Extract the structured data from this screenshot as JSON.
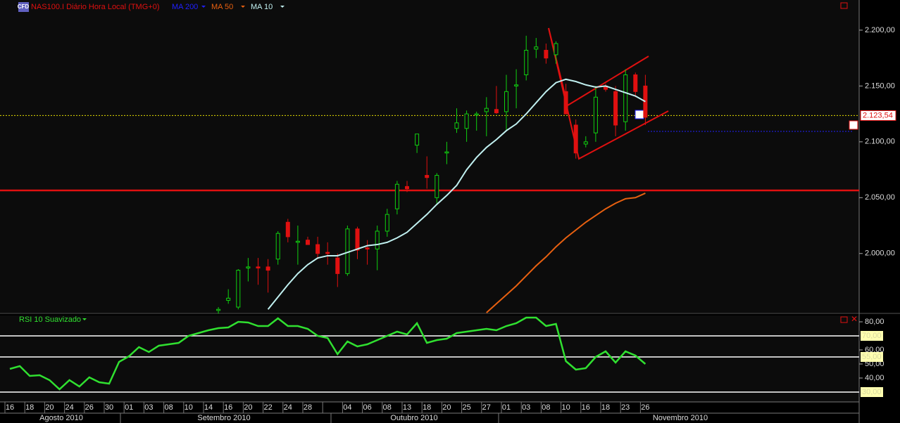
{
  "chart_data": [
    {
      "type": "candlestick",
      "title": "NAS100.I Diário Hora Local (TMG+0)",
      "title_color": "#e01010",
      "categories": [
        "16",
        null,
        "18",
        null,
        "20",
        null,
        "24",
        null,
        "26",
        null,
        "30",
        null,
        "01",
        null,
        "03",
        null,
        "08",
        null,
        "10",
        null,
        "14",
        null,
        "16",
        null,
        "20",
        null,
        "22",
        null,
        "24",
        null,
        "28",
        null,
        null,
        null,
        "04",
        null,
        "06",
        null,
        "08",
        null,
        "13",
        null,
        "18",
        null,
        "20",
        null,
        "25",
        null,
        "27",
        null,
        "01",
        null,
        "03",
        null,
        "08",
        null,
        "10",
        null,
        "16",
        null,
        "18",
        null,
        "23",
        null,
        "26"
      ],
      "open": [
        null,
        null,
        null,
        null,
        null,
        null,
        null,
        null,
        null,
        null,
        null,
        null,
        null,
        null,
        null,
        null,
        null,
        null,
        null,
        null,
        null,
        1949,
        1958,
        1952,
        1987,
        1988,
        1988,
        1995,
        2028,
        2010,
        2012,
        2008,
        2001,
        1996,
        1982,
        2022,
        2005,
        2004,
        2020,
        2040,
        2060,
        2097,
        2070,
        2050,
        2090,
        2112,
        2112,
        2124,
        2127,
        2129,
        2127,
        2150,
        2160,
        2183,
        2182,
        2178,
        2145,
        2115,
        2098,
        2108,
        2150,
        2145,
        2118,
        2160,
        2150
      ],
      "high": [
        null,
        null,
        null,
        null,
        null,
        null,
        null,
        null,
        null,
        null,
        null,
        null,
        null,
        null,
        null,
        null,
        null,
        null,
        null,
        null,
        null,
        1952,
        1968,
        1986,
        1996,
        1996,
        1995,
        2020,
        2031,
        2025,
        2015,
        2015,
        2010,
        2000,
        2025,
        2024,
        2012,
        2025,
        2040,
        2065,
        2065,
        2107,
        2087,
        2072,
        2100,
        2130,
        2128,
        2127,
        2140,
        2150,
        2160,
        2165,
        2195,
        2193,
        2188,
        2190,
        2152,
        2120,
        2105,
        2150,
        2152,
        2150,
        2165,
        2162,
        2160
      ],
      "low": [
        null,
        null,
        null,
        null,
        null,
        null,
        null,
        null,
        null,
        null,
        null,
        null,
        null,
        null,
        null,
        null,
        null,
        null,
        null,
        null,
        null,
        1946,
        1955,
        1950,
        1975,
        1972,
        1965,
        1990,
        2010,
        1990,
        2008,
        1995,
        1990,
        1970,
        1980,
        1995,
        1990,
        1985,
        2015,
        2035,
        2055,
        2090,
        2058,
        2045,
        2080,
        2108,
        2100,
        2110,
        2105,
        2125,
        2110,
        2130,
        2155,
        2175,
        2170,
        2170,
        2125,
        2085,
        2095,
        2100,
        2145,
        2105,
        2110,
        2140,
        2115
      ],
      "close": [
        null,
        null,
        null,
        null,
        null,
        null,
        null,
        null,
        null,
        null,
        null,
        null,
        null,
        null,
        null,
        null,
        null,
        null,
        null,
        null,
        null,
        1950,
        1960,
        1985,
        1988,
        1987,
        1985,
        2018,
        2015,
        2011,
        2008,
        2000,
        2000,
        1982,
        2022,
        2003,
        2004,
        2020,
        2035,
        2062,
        2058,
        2107,
        2068,
        2070,
        2091,
        2117,
        2125,
        2125,
        2130,
        2126,
        2145,
        2151,
        2182,
        2185,
        2175,
        2188,
        2125,
        2090,
        2100,
        2140,
        2147,
        2115,
        2160,
        2145,
        2122
      ],
      "up_color": "#10d010",
      "down_color": "#e01010",
      "series": [
        {
          "name": "MA 200",
          "color": "#2020ff",
          "values": [
            null,
            null,
            null,
            null,
            null,
            null,
            null,
            null,
            null,
            null,
            null,
            null,
            null,
            null,
            null,
            null,
            null,
            null,
            null,
            null,
            null,
            null,
            null,
            null,
            null,
            null,
            null,
            null,
            null,
            null,
            null,
            null,
            null,
            null,
            null,
            null,
            null,
            null,
            null,
            null,
            null,
            null,
            null,
            null,
            null,
            null,
            null,
            null,
            null,
            null,
            null,
            null,
            null,
            null,
            null,
            null,
            null,
            null,
            null,
            null,
            null,
            null,
            null,
            null,
            null
          ]
        },
        {
          "name": "MA 50",
          "color": "#e86010",
          "values": [
            null,
            null,
            null,
            null,
            null,
            null,
            null,
            null,
            null,
            null,
            null,
            null,
            null,
            null,
            null,
            null,
            null,
            null,
            null,
            null,
            null,
            null,
            null,
            null,
            null,
            null,
            null,
            null,
            null,
            null,
            null,
            null,
            null,
            null,
            null,
            null,
            null,
            null,
            null,
            null,
            null,
            null,
            null,
            null,
            null,
            null,
            null,
            null,
            1947,
            1955,
            1963,
            1971,
            1980,
            1989,
            1997,
            2006,
            2014,
            2021,
            2028,
            2034,
            2040,
            2045,
            2049,
            2050,
            2054
          ]
        },
        {
          "name": "MA 10",
          "color": "#c0f0f0",
          "values": [
            null,
            null,
            null,
            null,
            null,
            null,
            null,
            null,
            null,
            null,
            null,
            null,
            null,
            null,
            null,
            null,
            null,
            null,
            null,
            null,
            null,
            null,
            null,
            null,
            null,
            null,
            1950,
            1961,
            1972,
            1982,
            1990,
            1996,
            1998,
            1998,
            2001,
            2004,
            2007,
            2008,
            2010,
            2014,
            2019,
            2027,
            2035,
            2044,
            2052,
            2061,
            2075,
            2086,
            2095,
            2102,
            2110,
            2116,
            2125,
            2135,
            2145,
            2153,
            2156,
            2154,
            2151,
            2149,
            2150,
            2147,
            2144,
            2141,
            2136
          ]
        }
      ],
      "ylim": [
        1947,
        2227
      ],
      "yticks": [
        {
          "value": 2000,
          "label": "2.000,00"
        },
        {
          "value": 2050,
          "label": "2.050,00"
        },
        {
          "value": 2100,
          "label": "2.100,00"
        },
        {
          "value": 2150,
          "label": "2.150,00"
        },
        {
          "value": 2200,
          "label": "2.200,00"
        }
      ],
      "price_line": {
        "value": 2123.54,
        "label": "2.123,54"
      },
      "month_labels": [
        "Agosto 2010",
        "Setembro 2010",
        "Outubro 2010",
        "Novembro 2010"
      ]
    },
    {
      "type": "line",
      "title": "RSI 10 Suavizado",
      "color": "#30e030",
      "values": [
        46.5,
        48.5,
        41.5,
        42,
        38.5,
        32,
        38.5,
        34,
        40.5,
        37,
        36,
        51.5,
        55.5,
        62,
        58.5,
        63,
        64,
        65,
        70,
        72,
        74,
        75.5,
        76,
        80,
        79.5,
        77,
        77,
        82.5,
        77,
        77,
        75,
        70,
        68.5,
        57,
        66,
        62.5,
        64,
        67,
        70,
        73,
        71,
        79,
        65,
        67,
        68,
        72,
        73,
        74,
        75,
        74,
        77,
        79,
        83,
        83,
        77,
        78.5,
        52,
        46,
        47,
        55,
        59,
        51,
        59,
        56,
        50
      ],
      "ylim": [
        23,
        84
      ],
      "yticks": [
        {
          "value": 40,
          "label": "40,00"
        },
        {
          "value": 50,
          "label": "50,00"
        },
        {
          "value": 60,
          "label": "60,00"
        },
        {
          "value": 80,
          "label": "80,00"
        }
      ],
      "levels": [
        {
          "value": 70,
          "label": "70,00"
        },
        {
          "value": 55,
          "label": "55,00"
        },
        {
          "value": 30,
          "label": "30,00"
        }
      ]
    }
  ]
}
